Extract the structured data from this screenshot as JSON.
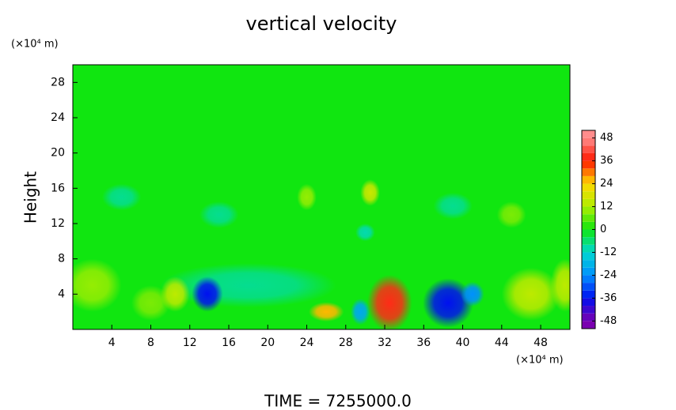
{
  "chart_data": {
    "type": "contour",
    "title": "vertical velocity",
    "y_label": "Height",
    "y_unit": "(×10⁴ m)",
    "x_unit": "(×10⁴ m)",
    "footer": "TIME = 7255000.0",
    "xlim": [
      0,
      51
    ],
    "ylim": [
      0,
      30
    ],
    "xticks": [
      4,
      8,
      12,
      16,
      20,
      24,
      28,
      32,
      36,
      40,
      44,
      48
    ],
    "yticks": [
      4,
      8,
      12,
      16,
      20,
      24,
      28
    ],
    "background_value": 0,
    "clim": [
      -52,
      52
    ],
    "cticks": [
      -48,
      -36,
      -24,
      -12,
      0,
      12,
      24,
      36,
      48
    ],
    "colorscale": [
      [
        -48,
        "#7a00b0"
      ],
      [
        -36,
        "#0010f0"
      ],
      [
        -24,
        "#0090ff"
      ],
      [
        -12,
        "#00d8d0"
      ],
      [
        0,
        "#10e610"
      ],
      [
        12,
        "#b0ee00"
      ],
      [
        24,
        "#ffd800"
      ],
      [
        36,
        "#ff1800"
      ],
      [
        48,
        "#ff8c8c"
      ]
    ],
    "features": [
      {
        "x": 18,
        "y": 5,
        "rx": 9,
        "ry": 2.5,
        "value": -8
      },
      {
        "x": 2,
        "y": 5,
        "rx": 3,
        "ry": 3,
        "value": 10
      },
      {
        "x": 8,
        "y": 3,
        "rx": 2,
        "ry": 2,
        "value": 8
      },
      {
        "x": 10.5,
        "y": 4,
        "rx": 1.5,
        "ry": 2,
        "value": 14
      },
      {
        "x": 13.8,
        "y": 4,
        "rx": 1.6,
        "ry": 2,
        "value": -36
      },
      {
        "x": 26,
        "y": 2,
        "rx": 1.8,
        "ry": 1.1,
        "value": 26
      },
      {
        "x": 29.5,
        "y": 2,
        "rx": 1,
        "ry": 1.5,
        "value": -20
      },
      {
        "x": 32.5,
        "y": 3,
        "rx": 2.3,
        "ry": 3.2,
        "value": 38
      },
      {
        "x": 38.5,
        "y": 3,
        "rx": 2.6,
        "ry": 2.8,
        "value": -36
      },
      {
        "x": 41,
        "y": 4,
        "rx": 1.2,
        "ry": 1.4,
        "value": -24
      },
      {
        "x": 47,
        "y": 4,
        "rx": 3,
        "ry": 3,
        "value": 14
      },
      {
        "x": 50.5,
        "y": 5,
        "rx": 1.5,
        "ry": 3,
        "value": 14
      },
      {
        "x": 30,
        "y": 11,
        "rx": 1,
        "ry": 1,
        "value": -10
      },
      {
        "x": 30.5,
        "y": 15.5,
        "rx": 1,
        "ry": 1.5,
        "value": 16
      },
      {
        "x": 24,
        "y": 15,
        "rx": 1,
        "ry": 1.5,
        "value": 10
      },
      {
        "x": 5,
        "y": 15,
        "rx": 2,
        "ry": 1.5,
        "value": -8
      },
      {
        "x": 15,
        "y": 13,
        "rx": 2,
        "ry": 1.5,
        "value": -8
      },
      {
        "x": 39,
        "y": 14,
        "rx": 2,
        "ry": 1.5,
        "value": -8
      },
      {
        "x": 45,
        "y": 13,
        "rx": 1.5,
        "ry": 1.5,
        "value": 8
      }
    ]
  }
}
